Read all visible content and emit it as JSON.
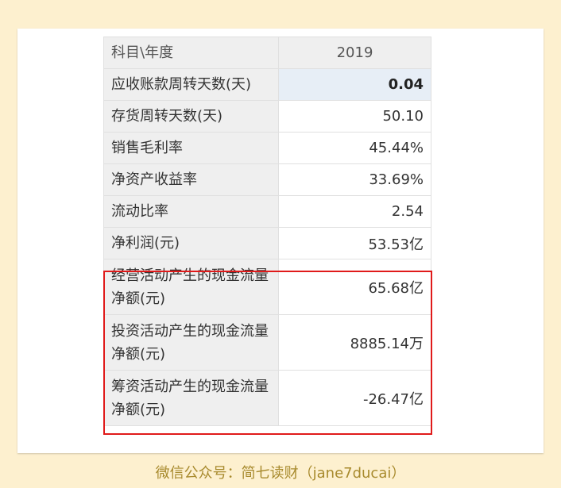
{
  "table": {
    "header": {
      "label": "科目\\年度",
      "year": "2019"
    },
    "rows": [
      {
        "label": "应收账款周转天数(天)",
        "value": "0.04"
      },
      {
        "label": "存货周转天数(天)",
        "value": "50.10"
      },
      {
        "label": "销售毛利率",
        "value": "45.44%"
      },
      {
        "label": "净资产收益率",
        "value": "33.69%"
      },
      {
        "label": "流动比率",
        "value": "2.54"
      },
      {
        "label": "净利润(元)",
        "value": "53.53亿"
      },
      {
        "label": "经营活动产生的现金流量净额(元)",
        "value": "65.68亿"
      },
      {
        "label": "投资活动产生的现金流量净额(元)",
        "value": "8885.14万"
      },
      {
        "label": "筹资活动产生的现金流量净额(元)",
        "value": "-26.47亿"
      }
    ]
  },
  "caption": "微信公众号：简七读财（jane7ducai）",
  "colors": {
    "background": "#fdf0cf",
    "highlight_box": "#e01a1a",
    "highlight_cell": "#e7eef6",
    "caption_text": "#a88a2d"
  }
}
